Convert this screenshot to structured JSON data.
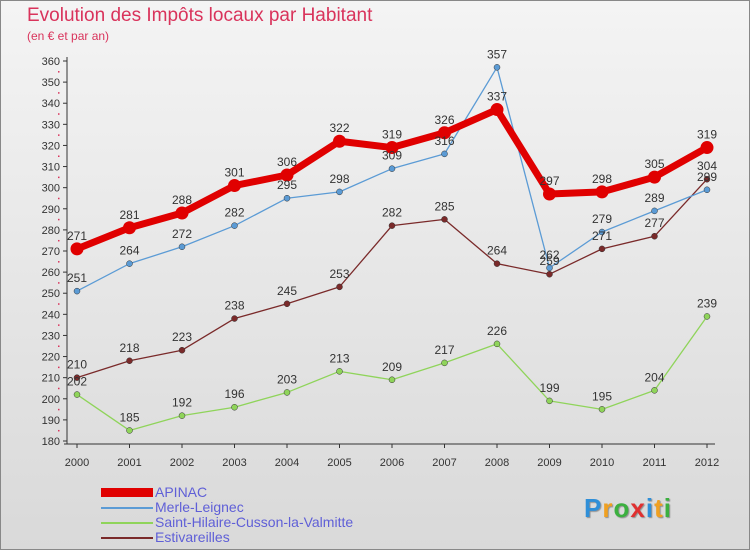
{
  "title": "Evolution des Impôts locaux par Habitant",
  "subtitle": "(en € et par an)",
  "chart_data": {
    "type": "line",
    "title": "Evolution des Impôts locaux par Habitant",
    "subtitle": "(en € et par an)",
    "x": [
      "2000",
      "2001",
      "2002",
      "2003",
      "2004",
      "2005",
      "2006",
      "2007",
      "2008",
      "2009",
      "2010",
      "2011",
      "2012"
    ],
    "ylim": [
      180,
      360
    ],
    "yticks": [
      180,
      190,
      200,
      210,
      220,
      230,
      240,
      250,
      260,
      270,
      280,
      290,
      300,
      310,
      320,
      330,
      340,
      350,
      360
    ],
    "grid": false,
    "legend_position": "bottom-left",
    "series": [
      {
        "name": "APINAC",
        "color": "#e00000",
        "values": [
          271,
          281,
          288,
          301,
          306,
          322,
          319,
          326,
          337,
          297,
          298,
          305,
          319
        ]
      },
      {
        "name": "Merle-Leignec",
        "color": "#5b9bd5",
        "values": [
          251,
          264,
          272,
          282,
          295,
          298,
          309,
          316,
          357,
          262,
          279,
          289,
          299
        ]
      },
      {
        "name": "Saint-Hilaire-Cusson-la-Valmitte",
        "color": "#8fd45a",
        "values": [
          202,
          185,
          192,
          196,
          203,
          213,
          209,
          217,
          226,
          199,
          195,
          204,
          239
        ]
      },
      {
        "name": "Estivareilles",
        "color": "#7a2a2a",
        "values": [
          210,
          218,
          223,
          238,
          245,
          253,
          282,
          285,
          264,
          259,
          271,
          277,
          304
        ]
      }
    ]
  },
  "logo": {
    "letters": [
      "P",
      "r",
      "o",
      "x",
      "i",
      "t",
      "i"
    ],
    "colors": [
      "#2f8fd8",
      "#f0a020",
      "#3cb040",
      "#e03030",
      "#2f8fd8",
      "#f0a020",
      "#3cb040"
    ]
  }
}
